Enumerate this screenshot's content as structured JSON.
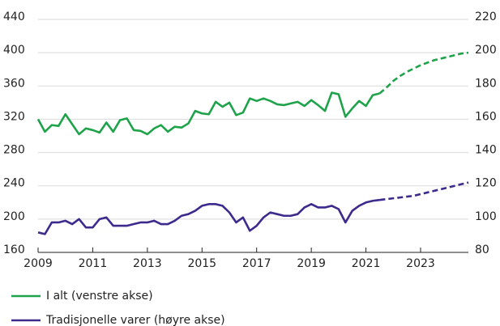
{
  "chart_data": {
    "type": "line",
    "x": [
      2009,
      2009.25,
      2009.5,
      2009.75,
      2010,
      2010.25,
      2010.5,
      2010.75,
      2011,
      2011.25,
      2011.5,
      2011.75,
      2012,
      2012.25,
      2012.5,
      2012.75,
      2013,
      2013.25,
      2013.5,
      2013.75,
      2014,
      2014.25,
      2014.5,
      2014.75,
      2015,
      2015.25,
      2015.5,
      2015.75,
      2016,
      2016.25,
      2016.5,
      2016.75,
      2017,
      2017.25,
      2017.5,
      2017.75,
      2018,
      2018.25,
      2018.5,
      2018.75,
      2019,
      2019.25,
      2019.5,
      2019.75,
      2020,
      2020.25,
      2020.5,
      2020.75,
      2021,
      2021.25,
      2021.5,
      2021.75,
      2022,
      2022.25,
      2022.5,
      2022.75,
      2023,
      2023.25,
      2023.5,
      2023.75,
      2024,
      2024.25,
      2024.5,
      2024.75
    ],
    "series": [
      {
        "name": "I alt (venstre akse)",
        "color": "#1fa34a",
        "axis": "y",
        "dashed_from_x": 2021.5,
        "values": [
          320,
          305,
          313,
          312,
          326,
          314,
          302,
          309,
          307,
          304,
          316,
          305,
          319,
          321,
          307,
          306,
          302,
          309,
          313,
          305,
          311,
          310,
          315,
          330,
          327,
          326,
          341,
          335,
          340,
          325,
          328,
          345,
          342,
          345,
          342,
          338,
          337,
          339,
          341,
          336,
          343,
          337,
          330,
          352,
          350,
          323,
          333,
          342,
          336,
          349,
          351,
          358,
          366,
          372,
          377,
          381,
          385,
          388,
          391,
          393,
          395,
          397,
          399,
          400
        ]
      },
      {
        "name": "Tradisjonelle varer (høyre akse)",
        "color": "#3d2a8c",
        "axis": "y2",
        "dashed_from_x": 2021.5,
        "values": [
          92,
          91,
          98,
          98,
          99,
          97,
          100,
          95,
          95,
          100,
          101,
          96,
          96,
          96,
          97,
          98,
          98,
          99,
          97,
          97,
          99,
          102,
          103,
          105,
          108,
          109,
          109,
          108,
          104,
          98,
          101,
          93,
          96,
          101,
          104,
          103,
          102,
          102,
          103,
          107,
          109,
          107,
          107,
          108,
          106,
          98,
          105,
          108,
          110,
          111,
          111.5,
          112,
          112.5,
          113,
          113.5,
          114,
          115,
          116,
          117,
          118,
          119,
          120,
          121,
          122
        ]
      }
    ],
    "xlim": [
      2009,
      2024.75
    ],
    "xticks": [
      2009,
      2011,
      2013,
      2015,
      2017,
      2019,
      2021,
      2023
    ],
    "ylim": [
      160,
      440
    ],
    "yticks": [
      160,
      200,
      240,
      280,
      320,
      360,
      400,
      440
    ],
    "y2lim": [
      80,
      220
    ],
    "y2ticks": [
      80,
      100,
      120,
      140,
      160,
      180,
      200,
      220
    ],
    "grid": true
  }
}
